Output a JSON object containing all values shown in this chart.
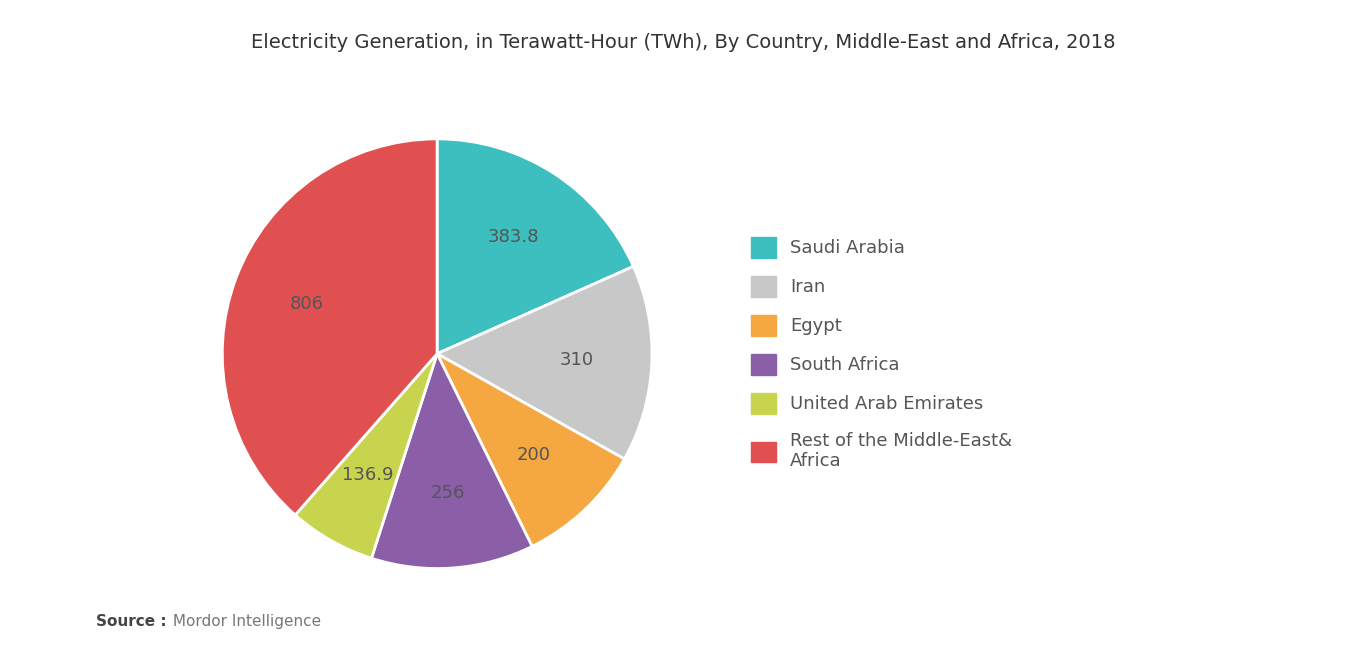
{
  "title": "Electricity Generation, in Terawatt-Hour (TWh), By Country, Middle-East and Africa, 2018",
  "labels": [
    "Saudi Arabia",
    "Iran",
    "Egypt",
    "South Africa",
    "United Arab Emirates",
    "Rest of the Middle-East&\nAfrica"
  ],
  "values": [
    383.8,
    310,
    200,
    256,
    136.9,
    806
  ],
  "colors": [
    "#3dbfbf",
    "#c8c8c8",
    "#f5a742",
    "#8b5ea8",
    "#c8d44e",
    "#e05050"
  ],
  "label_values": [
    "383.8",
    "310",
    "200",
    "256",
    "136.9",
    "806"
  ],
  "legend_labels": [
    "Saudi Arabia",
    "Iran",
    "Egypt",
    "South Africa",
    "United Arab Emirates",
    "Rest of the Middle-East&\nAfrica"
  ],
  "source_bold": "Source :",
  "source_rest": " Mordor Intelligence",
  "background_color": "#ffffff",
  "text_color": "#555555",
  "title_fontsize": 14,
  "label_fontsize": 13,
  "legend_fontsize": 13
}
